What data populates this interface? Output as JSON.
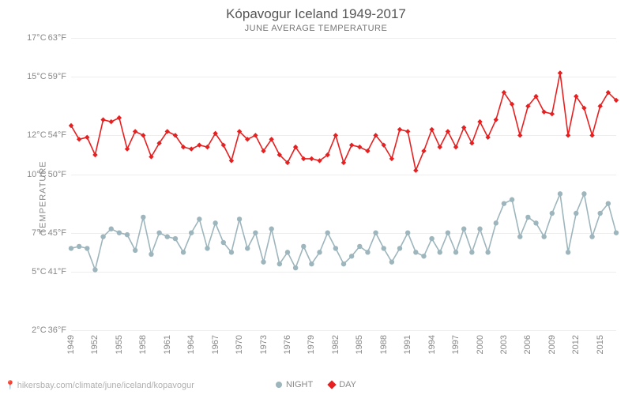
{
  "title": "Kópavogur Iceland 1949-2017",
  "subtitle": "JUNE AVERAGE TEMPERATURE",
  "y_axis_label": "TEMPERATURE",
  "source_text": "hikersbay.com/climate/june/iceland/kopavogur",
  "chart": {
    "type": "line",
    "ylim_c": [
      2,
      17
    ],
    "y_ticks": [
      {
        "c": "2°C",
        "f": "36°F",
        "v": 2
      },
      {
        "c": "5°C",
        "f": "41°F",
        "v": 5
      },
      {
        "c": "7°C",
        "f": "45°F",
        "v": 7
      },
      {
        "c": "10°C",
        "f": "50°F",
        "v": 10
      },
      {
        "c": "12°C",
        "f": "54°F",
        "v": 12
      },
      {
        "c": "15°C",
        "f": "59°F",
        "v": 15
      },
      {
        "c": "17°C",
        "f": "63°F",
        "v": 17
      }
    ],
    "x_start": 1949,
    "x_end": 2017,
    "x_tick_labels": [
      1949,
      1952,
      1955,
      1958,
      1961,
      1964,
      1967,
      1970,
      1973,
      1976,
      1979,
      1982,
      1985,
      1988,
      1991,
      1994,
      1997,
      2000,
      2003,
      2006,
      2009,
      2012,
      2015
    ],
    "background_color": "#ffffff",
    "grid_color": "#eeeeee",
    "title_color": "#555555",
    "axis_text_color": "#888888",
    "title_fontsize": 17,
    "subtitle_fontsize": 11,
    "axis_fontsize": 11,
    "series": [
      {
        "name": "NIGHT",
        "color": "#9db5bc",
        "marker": "circle",
        "marker_size": 3.2,
        "line_width": 1.6,
        "values": [
          6.2,
          6.3,
          6.2,
          5.1,
          6.8,
          7.2,
          7.0,
          6.9,
          6.1,
          7.8,
          5.9,
          7.0,
          6.8,
          6.7,
          6.0,
          7.0,
          7.7,
          6.2,
          7.5,
          6.5,
          6.0,
          7.7,
          6.2,
          7.0,
          5.5,
          7.2,
          5.4,
          6.0,
          5.2,
          6.3,
          5.4,
          6.0,
          7.0,
          6.2,
          5.4,
          5.8,
          6.3,
          6.0,
          7.0,
          6.2,
          5.5,
          6.2,
          7.0,
          6.0,
          5.8,
          6.7,
          6.0,
          7.0,
          6.0,
          7.2,
          6.0,
          7.2,
          6.0,
          7.5,
          8.5,
          8.7,
          6.8,
          7.8,
          7.5,
          6.8,
          8.0,
          9.0,
          6.0,
          8.0,
          9.0,
          6.8,
          8.0,
          8.5,
          7.0
        ],
        "years": [
          1949,
          1950,
          1951,
          1952,
          1953,
          1954,
          1955,
          1956,
          1957,
          1958,
          1959,
          1960,
          1961,
          1962,
          1963,
          1964,
          1965,
          1966,
          1967,
          1968,
          1969,
          1970,
          1971,
          1972,
          1973,
          1974,
          1975,
          1976,
          1977,
          1978,
          1979,
          1980,
          1981,
          1982,
          1983,
          1984,
          1985,
          1986,
          1987,
          1988,
          1989,
          1990,
          1991,
          1992,
          1993,
          1994,
          1995,
          1996,
          1997,
          1998,
          1999,
          2000,
          2001,
          2002,
          2003,
          2004,
          2005,
          2006,
          2007,
          2008,
          2009,
          2010,
          2011,
          2012,
          2013,
          2014,
          2015,
          2016,
          2017
        ]
      },
      {
        "name": "DAY",
        "color": "#e62020",
        "marker": "diamond",
        "marker_size": 3.2,
        "line_width": 1.6,
        "values": [
          12.5,
          11.8,
          11.9,
          11.0,
          12.8,
          12.7,
          12.9,
          11.3,
          12.2,
          12.0,
          10.9,
          11.6,
          12.2,
          12.0,
          11.4,
          11.3,
          11.5,
          11.4,
          12.1,
          11.5,
          10.7,
          12.2,
          11.8,
          12.0,
          11.2,
          11.8,
          11.0,
          10.6,
          11.4,
          10.8,
          10.8,
          10.7,
          11.0,
          12.0,
          10.6,
          11.5,
          11.4,
          11.2,
          12.0,
          11.5,
          10.8,
          12.3,
          12.2,
          10.2,
          11.2,
          12.3,
          11.4,
          12.2,
          11.4,
          12.4,
          11.6,
          12.7,
          11.9,
          12.8,
          14.2,
          13.6,
          12.0,
          13.5,
          14.0,
          13.2,
          13.1,
          15.2,
          12.0,
          14.0,
          13.4,
          12.0,
          13.5,
          14.2,
          13.8
        ],
        "years": [
          1949,
          1950,
          1951,
          1952,
          1953,
          1954,
          1955,
          1956,
          1957,
          1958,
          1959,
          1960,
          1961,
          1962,
          1963,
          1964,
          1965,
          1966,
          1967,
          1968,
          1969,
          1970,
          1971,
          1972,
          1973,
          1974,
          1975,
          1976,
          1977,
          1978,
          1979,
          1980,
          1981,
          1982,
          1983,
          1984,
          1985,
          1986,
          1987,
          1988,
          1989,
          1990,
          1991,
          1992,
          1993,
          1994,
          1995,
          1996,
          1997,
          1998,
          1999,
          2000,
          2001,
          2002,
          2003,
          2004,
          2005,
          2006,
          2007,
          2008,
          2009,
          2010,
          2011,
          2012,
          2013,
          2014,
          2015,
          2016,
          2017
        ]
      }
    ]
  },
  "legend": [
    {
      "label": "NIGHT",
      "color": "#9db5bc",
      "marker": "circle"
    },
    {
      "label": "DAY",
      "color": "#e62020",
      "marker": "diamond"
    }
  ]
}
